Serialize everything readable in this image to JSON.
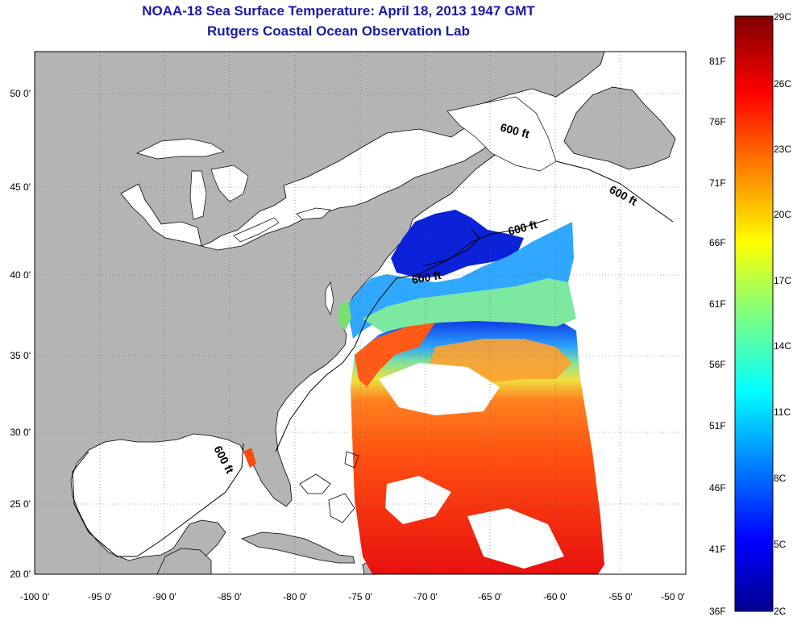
{
  "header": {
    "title": "NOAA-18 Sea Surface Temperature:  April 18, 2013 1947 GMT",
    "subtitle": "Rutgers Coastal Ocean Observation Lab"
  },
  "map": {
    "lon_ticks": [
      "-100 0'",
      "-95 0'",
      "-90 0'",
      "-85 0'",
      "-80 0'",
      "-75 0'",
      "-70 0'",
      "-65 0'",
      "-60 0'",
      "-55 0'",
      "-50 0'"
    ],
    "lat_ticks": [
      "20 0'",
      "25 0'",
      "30 0'",
      "35 0'",
      "40 0'",
      "45 0'",
      "50 0'"
    ],
    "contour_labels": [
      "600 ft",
      "600 ft",
      "600 ft",
      "600 ft",
      "600 ft"
    ],
    "colors": {
      "land": "#b4b4b4",
      "ocean_nodata": "#ffffff",
      "title": "#1a1aa6"
    }
  },
  "colorbar": {
    "fahrenheit": [
      "36F",
      "41F",
      "46F",
      "51F",
      "56F",
      "61F",
      "66F",
      "71F",
      "76F",
      "81F"
    ],
    "celsius": [
      "2C",
      "5C",
      "8C",
      "11C",
      "14C",
      "17C",
      "20C",
      "23C",
      "26C",
      "29C"
    ]
  }
}
